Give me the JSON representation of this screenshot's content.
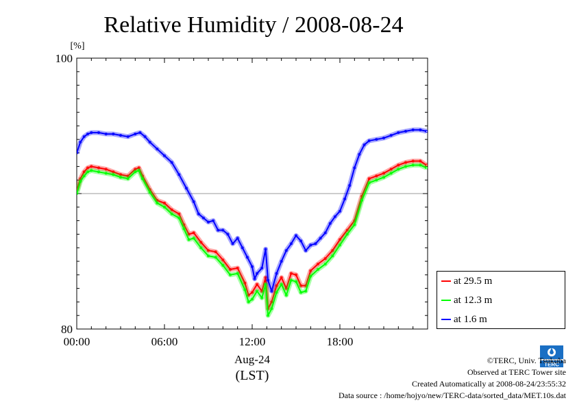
{
  "chart_data": {
    "type": "line",
    "title": "Relative Humidity / 2008-08-24",
    "y_unit_label": "[%]",
    "ylim": [
      80,
      100
    ],
    "y_ticks": [
      "100",
      "80"
    ],
    "xlim": [
      "00:00",
      "24:00"
    ],
    "x_ticks": [
      "00:00",
      "06:00",
      "12:00",
      "18:00"
    ],
    "x_date_label": "Aug-24",
    "x_zone_label": "(LST)",
    "grid": "horizontal line at 90",
    "legend_placement": "bottom-right outside",
    "series": [
      {
        "name": "at 29.5 m",
        "color": "#ff0000",
        "points": [
          [
            "00:00",
            90.2
          ],
          [
            "00:15",
            91.1
          ],
          [
            "00:30",
            91.6
          ],
          [
            "00:45",
            91.9
          ],
          [
            "01:00",
            92.0
          ],
          [
            "01:30",
            91.9
          ],
          [
            "02:00",
            91.8
          ],
          [
            "02:30",
            91.6
          ],
          [
            "03:00",
            91.4
          ],
          [
            "03:30",
            91.3
          ],
          [
            "04:00",
            91.8
          ],
          [
            "04:15",
            91.9
          ],
          [
            "04:30",
            91.3
          ],
          [
            "05:00",
            90.3
          ],
          [
            "05:30",
            89.5
          ],
          [
            "06:00",
            89.3
          ],
          [
            "06:30",
            88.8
          ],
          [
            "07:00",
            88.5
          ],
          [
            "07:20",
            87.7
          ],
          [
            "07:40",
            87.0
          ],
          [
            "08:00",
            87.1
          ],
          [
            "08:30",
            86.4
          ],
          [
            "09:00",
            85.8
          ],
          [
            "09:30",
            85.7
          ],
          [
            "10:00",
            85.1
          ],
          [
            "10:30",
            84.4
          ],
          [
            "11:00",
            84.5
          ],
          [
            "11:30",
            83.4
          ],
          [
            "11:45",
            82.5
          ],
          [
            "12:00",
            82.7
          ],
          [
            "12:20",
            83.3
          ],
          [
            "12:40",
            82.8
          ],
          [
            "12:55",
            83.8
          ],
          [
            "13:05",
            81.5
          ],
          [
            "13:20",
            82.0
          ],
          [
            "13:40",
            83.2
          ],
          [
            "14:00",
            83.8
          ],
          [
            "14:20",
            83.0
          ],
          [
            "14:40",
            84.1
          ],
          [
            "15:00",
            84.0
          ],
          [
            "15:20",
            83.2
          ],
          [
            "15:40",
            83.2
          ],
          [
            "16:00",
            84.3
          ],
          [
            "16:30",
            84.8
          ],
          [
            "17:00",
            85.2
          ],
          [
            "17:30",
            85.8
          ],
          [
            "18:00",
            86.6
          ],
          [
            "18:30",
            87.3
          ],
          [
            "19:00",
            88.0
          ],
          [
            "19:30",
            89.8
          ],
          [
            "20:00",
            91.1
          ],
          [
            "20:30",
            91.3
          ],
          [
            "21:00",
            91.5
          ],
          [
            "21:30",
            91.8
          ],
          [
            "22:00",
            92.1
          ],
          [
            "22:30",
            92.3
          ],
          [
            "23:00",
            92.4
          ],
          [
            "23:30",
            92.4
          ],
          [
            "23:55",
            92.1
          ]
        ]
      },
      {
        "name": "at 12.3 m",
        "color": "#00ff00",
        "points": [
          [
            "00:00",
            90.0
          ],
          [
            "00:15",
            90.9
          ],
          [
            "00:30",
            91.3
          ],
          [
            "00:45",
            91.6
          ],
          [
            "01:00",
            91.7
          ],
          [
            "01:30",
            91.6
          ],
          [
            "02:00",
            91.5
          ],
          [
            "02:30",
            91.4
          ],
          [
            "03:00",
            91.2
          ],
          [
            "03:30",
            91.1
          ],
          [
            "04:00",
            91.6
          ],
          [
            "04:15",
            91.7
          ],
          [
            "04:30",
            91.1
          ],
          [
            "05:00",
            90.1
          ],
          [
            "05:30",
            89.3
          ],
          [
            "06:00",
            89.0
          ],
          [
            "06:30",
            88.5
          ],
          [
            "07:00",
            88.2
          ],
          [
            "07:20",
            87.4
          ],
          [
            "07:40",
            86.6
          ],
          [
            "08:00",
            86.7
          ],
          [
            "08:30",
            86.0
          ],
          [
            "09:00",
            85.4
          ],
          [
            "09:30",
            85.3
          ],
          [
            "10:00",
            84.7
          ],
          [
            "10:30",
            84.0
          ],
          [
            "11:00",
            84.1
          ],
          [
            "11:30",
            82.9
          ],
          [
            "11:45",
            82.0
          ],
          [
            "12:00",
            82.2
          ],
          [
            "12:20",
            82.8
          ],
          [
            "12:40",
            82.3
          ],
          [
            "12:55",
            83.3
          ],
          [
            "13:05",
            81.0
          ],
          [
            "13:20",
            81.5
          ],
          [
            "13:40",
            82.7
          ],
          [
            "14:00",
            83.3
          ],
          [
            "14:20",
            82.5
          ],
          [
            "14:40",
            83.6
          ],
          [
            "15:00",
            83.5
          ],
          [
            "15:20",
            82.7
          ],
          [
            "15:40",
            82.8
          ],
          [
            "16:00",
            83.9
          ],
          [
            "16:30",
            84.4
          ],
          [
            "17:00",
            84.8
          ],
          [
            "17:30",
            85.4
          ],
          [
            "18:00",
            86.2
          ],
          [
            "18:30",
            87.0
          ],
          [
            "19:00",
            87.7
          ],
          [
            "19:30",
            89.5
          ],
          [
            "20:00",
            90.8
          ],
          [
            "20:30",
            91.0
          ],
          [
            "21:00",
            91.2
          ],
          [
            "21:30",
            91.5
          ],
          [
            "22:00",
            91.8
          ],
          [
            "22:30",
            92.0
          ],
          [
            "23:00",
            92.1
          ],
          [
            "23:30",
            92.1
          ],
          [
            "23:55",
            91.9
          ]
        ]
      },
      {
        "name": "at 1.6 m",
        "color": "#0000ff",
        "points": [
          [
            "00:00",
            93.0
          ],
          [
            "00:15",
            93.8
          ],
          [
            "00:30",
            94.2
          ],
          [
            "00:45",
            94.4
          ],
          [
            "01:00",
            94.5
          ],
          [
            "01:30",
            94.5
          ],
          [
            "02:00",
            94.4
          ],
          [
            "02:30",
            94.4
          ],
          [
            "03:00",
            94.3
          ],
          [
            "03:30",
            94.2
          ],
          [
            "04:00",
            94.4
          ],
          [
            "04:20",
            94.5
          ],
          [
            "04:40",
            94.2
          ],
          [
            "05:00",
            93.8
          ],
          [
            "05:30",
            93.3
          ],
          [
            "06:00",
            92.8
          ],
          [
            "06:30",
            92.3
          ],
          [
            "07:00",
            91.4
          ],
          [
            "07:30",
            90.4
          ],
          [
            "08:00",
            89.4
          ],
          [
            "08:20",
            88.5
          ],
          [
            "08:40",
            88.2
          ],
          [
            "09:00",
            87.9
          ],
          [
            "09:20",
            88.0
          ],
          [
            "09:40",
            87.3
          ],
          [
            "10:00",
            87.3
          ],
          [
            "10:20",
            87.0
          ],
          [
            "10:40",
            86.3
          ],
          [
            "11:00",
            86.7
          ],
          [
            "11:20",
            86.0
          ],
          [
            "11:40",
            85.3
          ],
          [
            "12:00",
            84.6
          ],
          [
            "12:10",
            83.7
          ],
          [
            "12:20",
            84.1
          ],
          [
            "12:40",
            84.5
          ],
          [
            "12:55",
            85.9
          ],
          [
            "13:05",
            83.6
          ],
          [
            "13:20",
            82.8
          ],
          [
            "13:40",
            84.1
          ],
          [
            "14:00",
            85.0
          ],
          [
            "14:20",
            85.8
          ],
          [
            "14:40",
            86.3
          ],
          [
            "15:00",
            86.9
          ],
          [
            "15:20",
            86.5
          ],
          [
            "15:40",
            85.8
          ],
          [
            "16:00",
            86.2
          ],
          [
            "16:20",
            86.3
          ],
          [
            "16:40",
            86.7
          ],
          [
            "17:00",
            87.1
          ],
          [
            "17:20",
            87.8
          ],
          [
            "17:40",
            88.3
          ],
          [
            "18:00",
            88.7
          ],
          [
            "18:20",
            89.6
          ],
          [
            "18:40",
            90.6
          ],
          [
            "19:00",
            91.9
          ],
          [
            "19:20",
            92.9
          ],
          [
            "19:40",
            93.6
          ],
          [
            "20:00",
            93.9
          ],
          [
            "20:30",
            94.0
          ],
          [
            "21:00",
            94.1
          ],
          [
            "21:30",
            94.3
          ],
          [
            "22:00",
            94.5
          ],
          [
            "22:30",
            94.6
          ],
          [
            "23:00",
            94.7
          ],
          [
            "23:30",
            94.7
          ],
          [
            "23:55",
            94.6
          ]
        ]
      }
    ]
  },
  "credits": {
    "copyright": "©TERC, Univ. Tsukuba",
    "site": "Observed at TERC Tower site",
    "created": "Created Automatically at 2008-08-24/23:55:32",
    "source": "Data source : /home/hojyo/new/TERC-data/sorted_data/MET.10s.dat"
  },
  "logo": {
    "text": "TERC",
    "color": "#1a6fc4"
  }
}
